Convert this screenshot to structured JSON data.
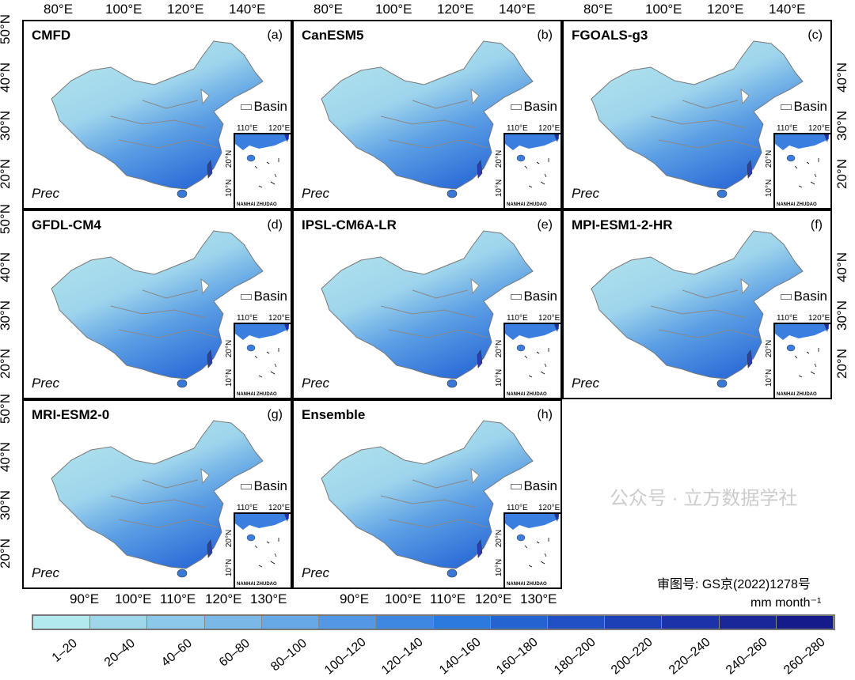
{
  "panels": [
    {
      "title": "CMFD",
      "letter": "(a)"
    },
    {
      "title": "CanESM5",
      "letter": "(b)"
    },
    {
      "title": "FGOALS-g3",
      "letter": "(c)"
    },
    {
      "title": "GFDL-CM4",
      "letter": "(d)"
    },
    {
      "title": "IPSL-CM6A-LR",
      "letter": "(e)"
    },
    {
      "title": "MPI-ESM1-2-HR",
      "letter": "(f)"
    },
    {
      "title": "MRI-ESM2-0",
      "letter": "(g)"
    },
    {
      "title": "Ensemble",
      "letter": "(h)"
    }
  ],
  "variable_label": "Prec",
  "legend_basin": "Basin",
  "inset": {
    "label": "NANHAI ZHUDAO",
    "lon_ticks": [
      "110°E",
      "120°E"
    ],
    "lat_ticks": [
      "20°N",
      "10°N"
    ]
  },
  "top_lon_ticks": [
    "80°E",
    "100°E",
    "120°E",
    "140°E"
  ],
  "bottom_lon_ticks": [
    "90°E",
    "100°E",
    "110°E",
    "120°E",
    "130°E"
  ],
  "lat_ticks": [
    "50°N",
    "40°N",
    "30°N",
    "20°N"
  ],
  "map_review_number": "审图号: GS京(2022)1278号",
  "colorbar": {
    "unit": "mm month⁻¹",
    "labels": [
      "1–20",
      "20–40",
      "40–60",
      "60–80",
      "80–100",
      "100–120",
      "120–140",
      "140–160",
      "160–180",
      "180–200",
      "200–220",
      "220–240",
      "240–260",
      "260–280"
    ],
    "colors": [
      "#b2e9ee",
      "#9fd7ea",
      "#8cc8ea",
      "#7ab8e8",
      "#67a9e6",
      "#5398e4",
      "#3f88e2",
      "#2c7ade",
      "#2464d0",
      "#2050c4",
      "#1e40b6",
      "#1c32a8",
      "#1a2798",
      "#151b8a"
    ]
  },
  "watermark": "公众号 · 立方数据学社"
}
